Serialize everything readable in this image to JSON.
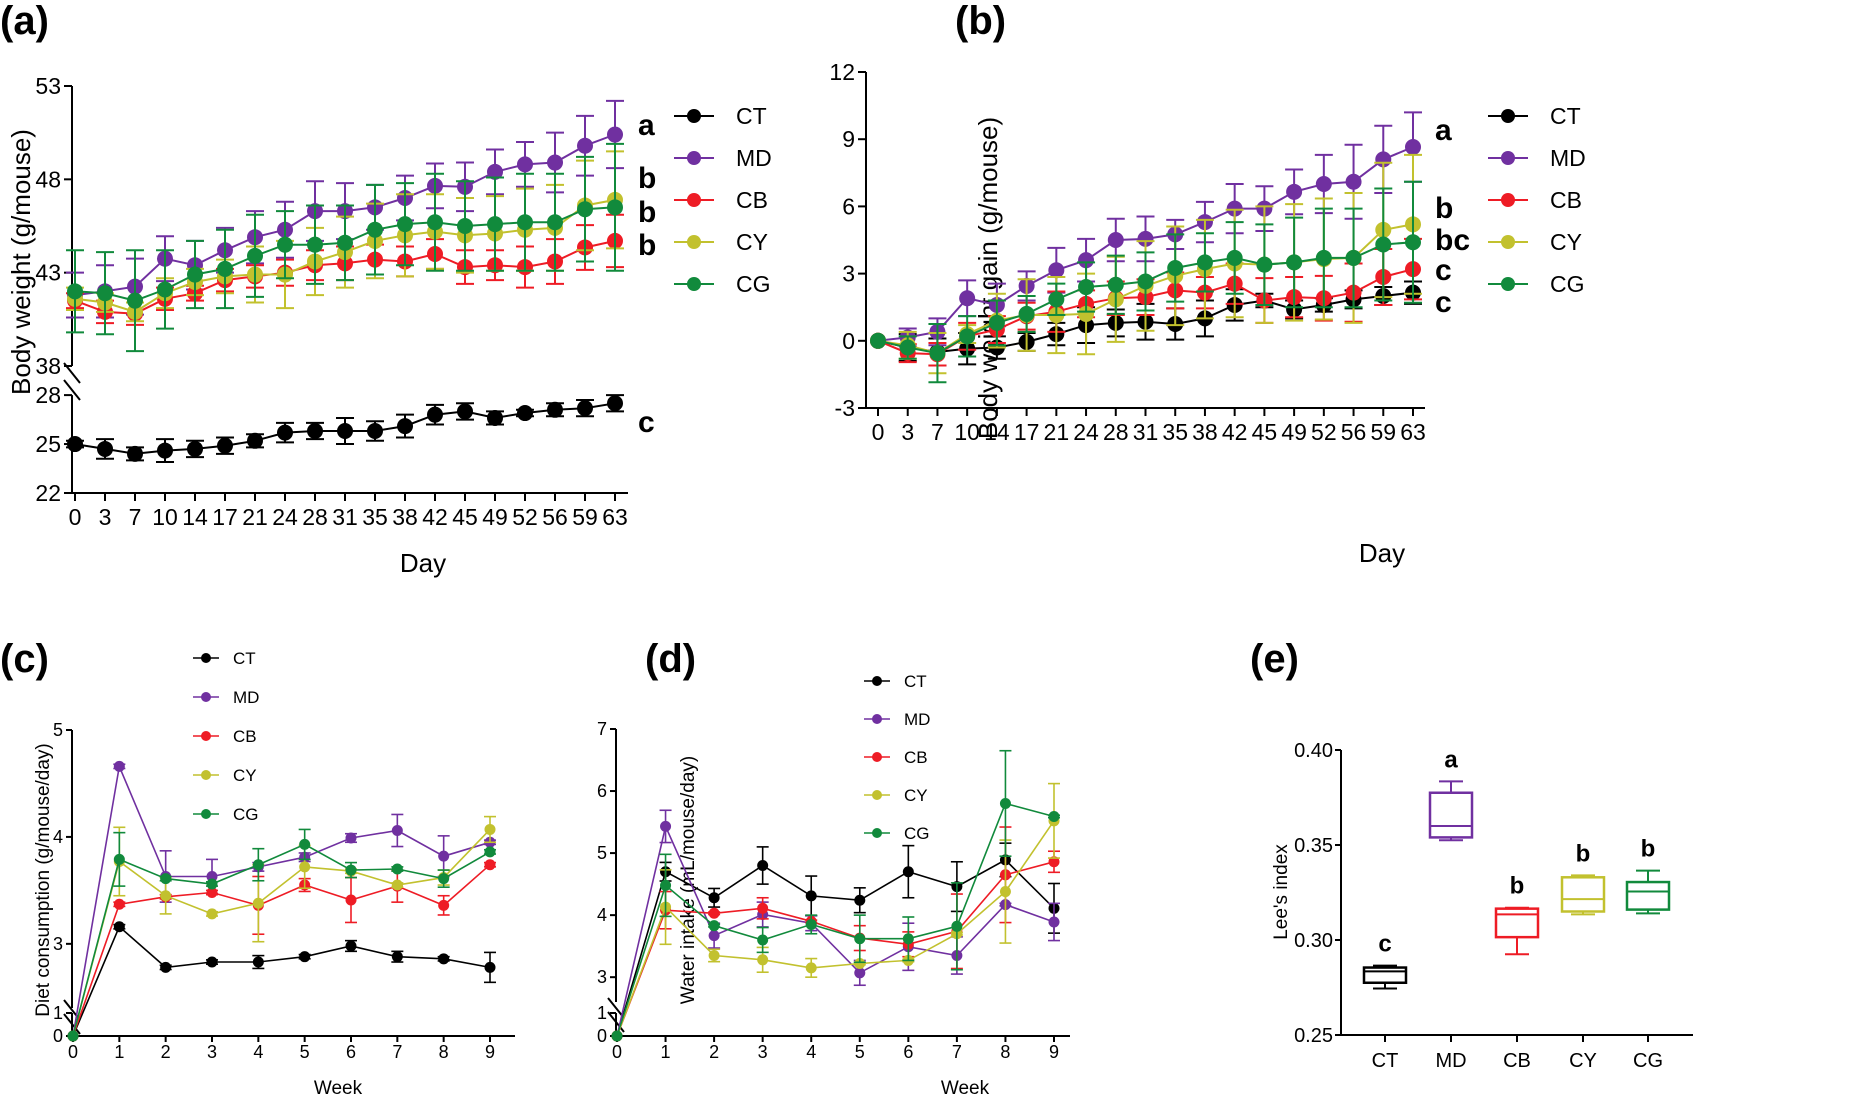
{
  "figure": {
    "panel_labels": [
      "(a)",
      "(b)",
      "(c)",
      "(d)",
      "(e)"
    ]
  },
  "colors": {
    "CT": "#000000",
    "MD": "#7030A0",
    "CB": "#EE1C25",
    "CY": "#C2C12E",
    "CG": "#118A3C"
  },
  "chart_data": [
    {
      "id": "a",
      "panel_label": "(a)",
      "type": "line",
      "title": "",
      "xlabel": "Day",
      "ylabel": "Body weight (g/mouse)",
      "x": [
        0,
        3,
        7,
        10,
        14,
        17,
        21,
        24,
        28,
        31,
        35,
        38,
        42,
        45,
        49,
        52,
        56,
        59,
        63
      ],
      "x_tick_labels": [
        "0",
        "3",
        "7",
        "10",
        "14",
        "17",
        "21",
        "24",
        "28",
        "31",
        "35",
        "38",
        "42",
        "45",
        "49",
        "52",
        "56",
        "59",
        "63"
      ],
      "y_axis_broken": true,
      "y_segments": [
        {
          "range": [
            22,
            28
          ],
          "ticks": [
            22,
            25,
            28
          ],
          "tick_labels": [
            "22",
            "25",
            "28"
          ]
        },
        {
          "range": [
            38,
            53
          ],
          "ticks": [
            38,
            43,
            48,
            53
          ],
          "tick_labels": [
            "38",
            "43",
            "48",
            "53"
          ]
        }
      ],
      "legend": {
        "position": "right",
        "entries": [
          "CT",
          "MD",
          "CB",
          "CY",
          "CG"
        ]
      },
      "series": [
        {
          "name": "CT",
          "values": [
            25.0,
            24.7,
            24.4,
            24.6,
            24.7,
            24.9,
            25.2,
            25.7,
            25.8,
            25.8,
            25.8,
            26.1,
            26.8,
            27.0,
            26.6,
            26.9,
            27.1,
            27.2,
            27.5
          ],
          "errors": [
            0.2,
            0.6,
            0.4,
            0.7,
            0.5,
            0.5,
            0.4,
            0.6,
            0.5,
            0.8,
            0.6,
            0.7,
            0.6,
            0.5,
            0.4,
            0.2,
            0.4,
            0.5,
            0.5
          ],
          "significance": "c"
        },
        {
          "name": "MD",
          "values": [
            41.8,
            42.0,
            42.25,
            43.75,
            43.4,
            44.2,
            44.9,
            45.3,
            46.3,
            46.3,
            46.5,
            47.0,
            47.65,
            47.6,
            48.4,
            48.8,
            48.9,
            49.8,
            50.4
          ],
          "errors": [
            1.2,
            1.4,
            1.5,
            1.2,
            1.3,
            1.2,
            1.4,
            1.5,
            1.6,
            1.5,
            1.2,
            1.2,
            1.2,
            1.3,
            1.2,
            1.2,
            1.6,
            1.6,
            1.8
          ],
          "significance": "a"
        },
        {
          "name": "CB",
          "values": [
            41.5,
            40.9,
            40.8,
            41.6,
            41.9,
            42.6,
            42.8,
            43.0,
            43.4,
            43.5,
            43.7,
            43.6,
            44.0,
            43.3,
            43.4,
            43.3,
            43.6,
            44.35,
            44.7
          ],
          "errors": [
            0.4,
            0.6,
            0.6,
            0.6,
            0.4,
            0.6,
            0.6,
            0.7,
            0.8,
            0.9,
            0.8,
            0.8,
            0.8,
            0.9,
            0.8,
            1.1,
            1.2,
            1.2,
            1.4
          ],
          "significance": "b"
        },
        {
          "name": "CY",
          "values": [
            41.6,
            41.4,
            40.9,
            41.9,
            42.5,
            42.8,
            42.9,
            42.9,
            43.6,
            44.1,
            44.7,
            45.0,
            45.2,
            45.0,
            45.1,
            45.3,
            45.4,
            46.6,
            46.9
          ],
          "errors": [
            0.6,
            0.5,
            0.5,
            0.8,
            0.7,
            0.9,
            1.5,
            1.8,
            1.8,
            1.9,
            2.0,
            2.2,
            2.0,
            2.0,
            2.0,
            2.2,
            2.3,
            2.4,
            2.6
          ],
          "significance": "b"
        },
        {
          "name": "CG",
          "values": [
            42.0,
            41.9,
            41.5,
            42.1,
            42.9,
            43.2,
            43.9,
            44.5,
            44.5,
            44.6,
            45.3,
            45.6,
            45.7,
            45.5,
            45.6,
            45.7,
            45.7,
            46.4,
            46.5
          ],
          "errors": [
            2.2,
            2.2,
            2.7,
            2.1,
            1.8,
            2.1,
            2.2,
            1.8,
            2.1,
            2.0,
            2.4,
            2.2,
            2.6,
            2.4,
            2.5,
            2.6,
            2.6,
            2.8,
            3.4
          ],
          "significance": "b"
        }
      ]
    },
    {
      "id": "b",
      "panel_label": "(b)",
      "type": "line",
      "title": "",
      "xlabel": "Day",
      "ylabel": "Body weight gain (g/mouse)",
      "x": [
        0,
        3,
        7,
        10,
        14,
        17,
        21,
        24,
        28,
        31,
        35,
        38,
        42,
        45,
        49,
        52,
        56,
        59,
        63
      ],
      "x_tick_labels": [
        "0",
        "3",
        "7",
        "10",
        "14",
        "17",
        "21",
        "24",
        "28",
        "31",
        "35",
        "38",
        "42",
        "45",
        "49",
        "52",
        "56",
        "59",
        "63"
      ],
      "ylim": [
        -3,
        12
      ],
      "y_ticks": [
        -3,
        0,
        3,
        6,
        9,
        12
      ],
      "y_tick_labels": [
        "-3",
        "0",
        "3",
        "6",
        "9",
        "12"
      ],
      "legend": {
        "position": "right",
        "entries": [
          "CT",
          "MD",
          "CB",
          "CY",
          "CG"
        ]
      },
      "series": [
        {
          "name": "CT",
          "values": [
            0,
            -0.3,
            -0.5,
            -0.35,
            -0.3,
            -0.05,
            0.3,
            0.7,
            0.8,
            0.85,
            0.75,
            1.0,
            1.6,
            1.8,
            1.4,
            1.6,
            1.85,
            2.0,
            2.15
          ],
          "errors": [
            0,
            0.6,
            0.6,
            0.7,
            0.5,
            0.4,
            0.5,
            0.8,
            0.6,
            0.8,
            0.7,
            0.8,
            0.7,
            0.3,
            0.4,
            0.3,
            0.4,
            0.4,
            0.5
          ],
          "significance": "c"
        },
        {
          "name": "MD",
          "values": [
            0,
            0.15,
            0.4,
            1.9,
            1.6,
            2.45,
            3.15,
            3.6,
            4.5,
            4.55,
            4.75,
            5.3,
            5.9,
            5.9,
            6.65,
            7.0,
            7.1,
            8.1,
            8.65
          ],
          "errors": [
            0,
            0.4,
            0.6,
            0.8,
            0.95,
            0.65,
            1.0,
            0.95,
            0.95,
            1.0,
            0.65,
            0.9,
            1.1,
            1.0,
            1.0,
            1.3,
            1.65,
            1.5,
            1.55
          ],
          "significance": "a"
        },
        {
          "name": "CB",
          "values": [
            0,
            -0.55,
            -0.6,
            0.2,
            0.5,
            1.1,
            1.3,
            1.65,
            1.9,
            1.95,
            2.25,
            2.15,
            2.55,
            1.8,
            1.95,
            1.9,
            2.15,
            2.85,
            3.2
          ],
          "errors": [
            0,
            0.4,
            0.5,
            0.6,
            0.6,
            0.6,
            0.9,
            0.6,
            0.75,
            0.8,
            0.8,
            0.7,
            0.9,
            1.0,
            0.9,
            1.0,
            1.3,
            1.25,
            1.35
          ],
          "significance": "c"
        },
        {
          "name": "CY",
          "values": [
            0,
            -0.2,
            -0.55,
            0.3,
            0.9,
            1.15,
            1.15,
            1.2,
            1.85,
            2.45,
            2.9,
            3.2,
            3.45,
            3.4,
            3.5,
            3.65,
            3.7,
            4.95,
            5.2
          ],
          "errors": [
            0,
            0.6,
            0.9,
            0.4,
            1.2,
            1.6,
            1.7,
            1.8,
            1.9,
            2.0,
            2.2,
            2.2,
            2.4,
            2.6,
            2.6,
            2.7,
            2.9,
            3.0,
            3.1
          ],
          "significance": "b"
        },
        {
          "name": "CG",
          "values": [
            0,
            -0.3,
            -0.55,
            0.2,
            0.8,
            1.2,
            1.85,
            2.4,
            2.5,
            2.65,
            3.25,
            3.5,
            3.7,
            3.4,
            3.5,
            3.7,
            3.7,
            4.3,
            4.4
          ],
          "errors": [
            0,
            0.5,
            1.3,
            0.9,
            1.0,
            0.8,
            0.7,
            1.1,
            1.3,
            1.3,
            1.5,
            1.3,
            1.6,
            1.8,
            2.0,
            2.2,
            2.2,
            2.5,
            2.7
          ],
          "significance": "bc"
        }
      ]
    },
    {
      "id": "c",
      "panel_label": "(c)",
      "type": "line",
      "title": "",
      "xlabel": "Week",
      "ylabel": "Diet consumption (g/mouse/day)",
      "x": [
        0,
        1,
        2,
        3,
        4,
        5,
        6,
        7,
        8,
        9
      ],
      "x_tick_labels": [
        "0",
        "1",
        "2",
        "3",
        "4",
        "5",
        "6",
        "7",
        "8",
        "9"
      ],
      "y_axis_broken": true,
      "y_segments": [
        {
          "range": [
            0,
            1
          ],
          "ticks": [
            0,
            1
          ],
          "tick_labels": [
            "0",
            "1"
          ]
        },
        {
          "range": [
            2.4,
            5
          ],
          "ticks": [
            3,
            4,
            5
          ],
          "tick_labels": [
            "3",
            "4",
            "5"
          ]
        }
      ],
      "legend": {
        "position": "top-center",
        "entries": [
          "CT",
          "MD",
          "CB",
          "CY",
          "CG"
        ]
      },
      "series": [
        {
          "name": "CT",
          "values": [
            0,
            3.16,
            2.78,
            2.83,
            2.83,
            2.88,
            2.98,
            2.88,
            2.86,
            2.78
          ],
          "errors": [
            0,
            0.02,
            0.02,
            0.02,
            0.06,
            0.02,
            0.05,
            0.05,
            0.02,
            0.14
          ]
        },
        {
          "name": "MD",
          "values": [
            0,
            4.66,
            3.63,
            3.63,
            3.72,
            3.81,
            3.99,
            4.06,
            3.82,
            3.95
          ],
          "errors": [
            0,
            0.02,
            0.24,
            0.16,
            0.04,
            0.04,
            0.04,
            0.15,
            0.19,
            0.02
          ]
        },
        {
          "name": "CB",
          "values": [
            0,
            3.37,
            3.44,
            3.48,
            3.36,
            3.55,
            3.41,
            3.54,
            3.36,
            3.74
          ],
          "errors": [
            0,
            0.02,
            0.02,
            0.02,
            0.27,
            0.06,
            0.21,
            0.15,
            0.09,
            0.02
          ]
        },
        {
          "name": "CY",
          "values": [
            0,
            3.77,
            3.45,
            3.28,
            3.38,
            3.72,
            3.68,
            3.55,
            3.62,
            4.07
          ],
          "errors": [
            0,
            0.32,
            0.17,
            0.02,
            0.36,
            0.2,
            0.02,
            0.02,
            0.07,
            0.12
          ]
        },
        {
          "name": "CG",
          "values": [
            0,
            3.79,
            3.61,
            3.56,
            3.74,
            3.93,
            3.69,
            3.7,
            3.61,
            3.86
          ],
          "errors": [
            0,
            0.25,
            0.02,
            0.02,
            0.15,
            0.14,
            0.07,
            0.02,
            0.08,
            0.02
          ]
        }
      ]
    },
    {
      "id": "d",
      "panel_label": "(d)",
      "type": "line",
      "title": "",
      "xlabel": "Week",
      "ylabel": "Water intake (mL/mouse/day)",
      "x": [
        0,
        1,
        2,
        3,
        4,
        5,
        6,
        7,
        8,
        9
      ],
      "x_tick_labels": [
        "0",
        "1",
        "2",
        "3",
        "4",
        "5",
        "6",
        "7",
        "8",
        "9"
      ],
      "y_axis_broken": true,
      "y_segments": [
        {
          "range": [
            0,
            1
          ],
          "ticks": [
            0,
            1
          ],
          "tick_labels": [
            "0",
            "1"
          ]
        },
        {
          "range": [
            2.6,
            7
          ],
          "ticks": [
            3,
            4,
            5,
            6,
            7
          ],
          "tick_labels": [
            "3",
            "4",
            "5",
            "6",
            "7"
          ]
        }
      ],
      "legend": {
        "position": "top-center",
        "entries": [
          "CT",
          "MD",
          "CB",
          "CY",
          "CG"
        ]
      },
      "series": [
        {
          "name": "CT",
          "values": [
            0,
            4.7,
            4.28,
            4.8,
            4.31,
            4.24,
            4.7,
            4.46,
            4.89,
            4.11
          ],
          "errors": [
            0,
            0.15,
            0.15,
            0.3,
            0.32,
            0.2,
            0.42,
            0.4,
            0.27,
            0.4
          ]
        },
        {
          "name": "MD",
          "values": [
            0,
            5.43,
            3.67,
            4.01,
            3.87,
            3.07,
            3.49,
            3.35,
            4.17,
            3.89
          ],
          "errors": [
            0,
            0.26,
            0.2,
            0.2,
            0.12,
            0.2,
            0.38,
            0.3,
            0.02,
            0.3
          ]
        },
        {
          "name": "CB",
          "values": [
            0,
            4.08,
            4.03,
            4.11,
            3.9,
            3.63,
            3.53,
            3.74,
            4.65,
            4.86
          ],
          "errors": [
            0,
            0.3,
            0.02,
            0.17,
            0.02,
            0.2,
            0.2,
            0.6,
            0.77,
            0.17
          ]
        },
        {
          "name": "CY",
          "values": [
            0,
            4.13,
            3.35,
            3.28,
            3.15,
            3.22,
            3.27,
            3.7,
            4.38,
            5.52
          ],
          "errors": [
            0,
            0.6,
            0.1,
            0.2,
            0.15,
            0.02,
            0.02,
            0.02,
            0.83,
            0.6
          ]
        },
        {
          "name": "CG",
          "values": [
            0,
            4.48,
            3.83,
            3.6,
            3.85,
            3.62,
            3.62,
            3.82,
            5.8,
            5.59
          ],
          "errors": [
            0,
            0.5,
            0.02,
            0.2,
            0.15,
            0.38,
            0.35,
            0.7,
            0.85,
            0.02
          ]
        }
      ]
    },
    {
      "id": "e",
      "panel_label": "(e)",
      "type": "box",
      "title": "",
      "xlabel": "",
      "ylabel": "Lee's index",
      "categories": [
        "CT",
        "MD",
        "CB",
        "CY",
        "CG"
      ],
      "ylim": [
        0.25,
        0.4
      ],
      "y_ticks": [
        0.25,
        0.3,
        0.35,
        0.4
      ],
      "y_tick_labels": [
        "0.25",
        "0.30",
        "0.35",
        "0.40"
      ],
      "boxes": [
        {
          "name": "CT",
          "min": 0.2745,
          "q1": 0.2775,
          "median": 0.2835,
          "q3": 0.2855,
          "max": 0.2865,
          "significance": "c"
        },
        {
          "name": "MD",
          "min": 0.3525,
          "q1": 0.354,
          "median": 0.36,
          "q3": 0.3775,
          "max": 0.3835,
          "significance": "a"
        },
        {
          "name": "CB",
          "min": 0.2925,
          "q1": 0.3015,
          "median": 0.3135,
          "q3": 0.3165,
          "max": 0.317,
          "significance": "b"
        },
        {
          "name": "CY",
          "min": 0.3135,
          "q1": 0.315,
          "median": 0.3215,
          "q3": 0.333,
          "max": 0.334,
          "significance": "b"
        },
        {
          "name": "CG",
          "min": 0.314,
          "q1": 0.316,
          "median": 0.3255,
          "q3": 0.3305,
          "max": 0.3365,
          "significance": "b"
        }
      ]
    }
  ]
}
